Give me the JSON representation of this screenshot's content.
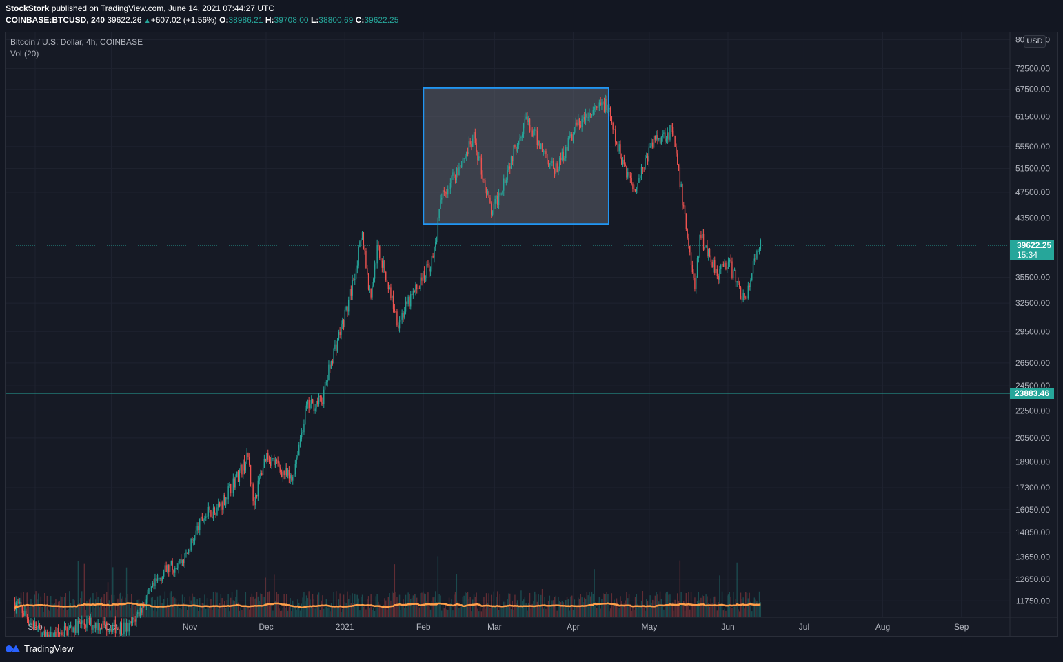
{
  "header": {
    "publisher": "StockStork",
    "published_text": " published on TradingView.com, June 14, 2021 07:44:27 UTC",
    "symbol": "COINBASE:BTCUSD, 240",
    "last": "39622.26",
    "change": "+607.02 (+1.56%)",
    "o_label": "O:",
    "o": "38986.21",
    "h_label": "H:",
    "h": "39708.00",
    "l_label": "L:",
    "l": "38800.69",
    "c_label": "C:",
    "c": "39622.25"
  },
  "legend": {
    "title": "Bitcoin / U.S. Dollar, 4h, COINBASE",
    "vol": "Vol (20)"
  },
  "currency": "USD",
  "footer": {
    "brand": "TradingView"
  },
  "colors": {
    "bg": "#161a25",
    "grid": "#1f2330",
    "up": "#26a69a",
    "down": "#ef5350",
    "vol_ma": "#ff9f4a",
    "box_fill": "#5d606b",
    "box_border": "#2196f3",
    "label_bg": "#26a69a"
  },
  "chart_data": {
    "type": "candlestick",
    "title": "Bitcoin / U.S. Dollar, 4h, COINBASE",
    "y_scale": "log",
    "y_ticks": [
      80000,
      72500,
      67500,
      61500,
      55500,
      51500,
      47500,
      43500,
      39622.25,
      35500,
      32500,
      29500,
      26500,
      24500,
      23883.46,
      22500,
      20500,
      18900,
      17300,
      16050,
      14850,
      13650,
      12650,
      11750
    ],
    "y_tick_labels": [
      "80000.00",
      "72500.00",
      "67500.00",
      "61500.00",
      "55500.00",
      "51500.00",
      "47500.00",
      "43500.00",
      "",
      "35500.00",
      "32500.00",
      "29500.00",
      "26500.00",
      "24500.00",
      "",
      "22500.00",
      "20500.00",
      "18900.00",
      "17300.00",
      "16050.00",
      "14850.00",
      "13650.00",
      "12650.00",
      "11750.00"
    ],
    "x_labels": [
      "Sep",
      "Oct",
      "Nov",
      "Dec",
      "2021",
      "Feb",
      "Mar",
      "Apr",
      "May",
      "Jun",
      "Jul",
      "Aug",
      "Sep"
    ],
    "x_label_dates": [
      "2020-09-01",
      "2020-10-01",
      "2020-11-01",
      "2020-12-01",
      "2021-01-01",
      "2021-02-01",
      "2021-03-01",
      "2021-04-01",
      "2021-05-01",
      "2021-06-01",
      "2021-07-01",
      "2021-08-01",
      "2021-09-01"
    ],
    "price_path": [
      [
        "2020-08-24",
        11700
      ],
      [
        "2020-09-05",
        10300
      ],
      [
        "2020-09-20",
        10900
      ],
      [
        "2020-10-08",
        10700
      ],
      [
        "2020-10-21",
        12900
      ],
      [
        "2020-10-30",
        13600
      ],
      [
        "2020-11-06",
        15600
      ],
      [
        "2020-11-13",
        16300
      ],
      [
        "2020-11-24",
        19200
      ],
      [
        "2020-11-26",
        16400
      ],
      [
        "2020-12-01",
        19400
      ],
      [
        "2020-12-11",
        17700
      ],
      [
        "2020-12-17",
        22800
      ],
      [
        "2020-12-23",
        23300
      ],
      [
        "2020-12-27",
        27000
      ],
      [
        "2021-01-02",
        32000
      ],
      [
        "2021-01-08",
        41000
      ],
      [
        "2021-01-11",
        33000
      ],
      [
        "2021-01-14",
        39500
      ],
      [
        "2021-01-22",
        30500
      ],
      [
        "2021-01-29",
        34000
      ],
      [
        "2021-02-05",
        38000
      ],
      [
        "2021-02-08",
        46500
      ],
      [
        "2021-02-21",
        57000
      ],
      [
        "2021-02-28",
        44000
      ],
      [
        "2021-03-13",
        61000
      ],
      [
        "2021-03-25",
        51000
      ],
      [
        "2021-04-02",
        59500
      ],
      [
        "2021-04-14",
        64500
      ],
      [
        "2021-04-18",
        56000
      ],
      [
        "2021-04-25",
        48000
      ],
      [
        "2021-05-03",
        57000
      ],
      [
        "2021-05-10",
        58500
      ],
      [
        "2021-05-13",
        49500
      ],
      [
        "2021-05-19",
        34000
      ],
      [
        "2021-05-21",
        41000
      ],
      [
        "2021-05-28",
        36000
      ],
      [
        "2021-06-01",
        37500
      ],
      [
        "2021-06-08",
        32500
      ],
      [
        "2021-06-11",
        37000
      ],
      [
        "2021-06-14",
        39622.25
      ]
    ],
    "series": [
      {
        "values": []
      },
      {
        "name": "Vol (20)",
        "values": []
      }
    ],
    "annotations": {
      "rectangle": {
        "x_from": "2021-02-01",
        "x_to": "2021-04-15",
        "y_from": 42600,
        "y_to": 67800
      },
      "horizontal_line": {
        "price": 23883.46,
        "label": "23883.46"
      },
      "last_price": {
        "price": 39622.25,
        "label": "39622.25",
        "countdown": "15:34"
      }
    },
    "grid": true,
    "legend": "top-left"
  }
}
